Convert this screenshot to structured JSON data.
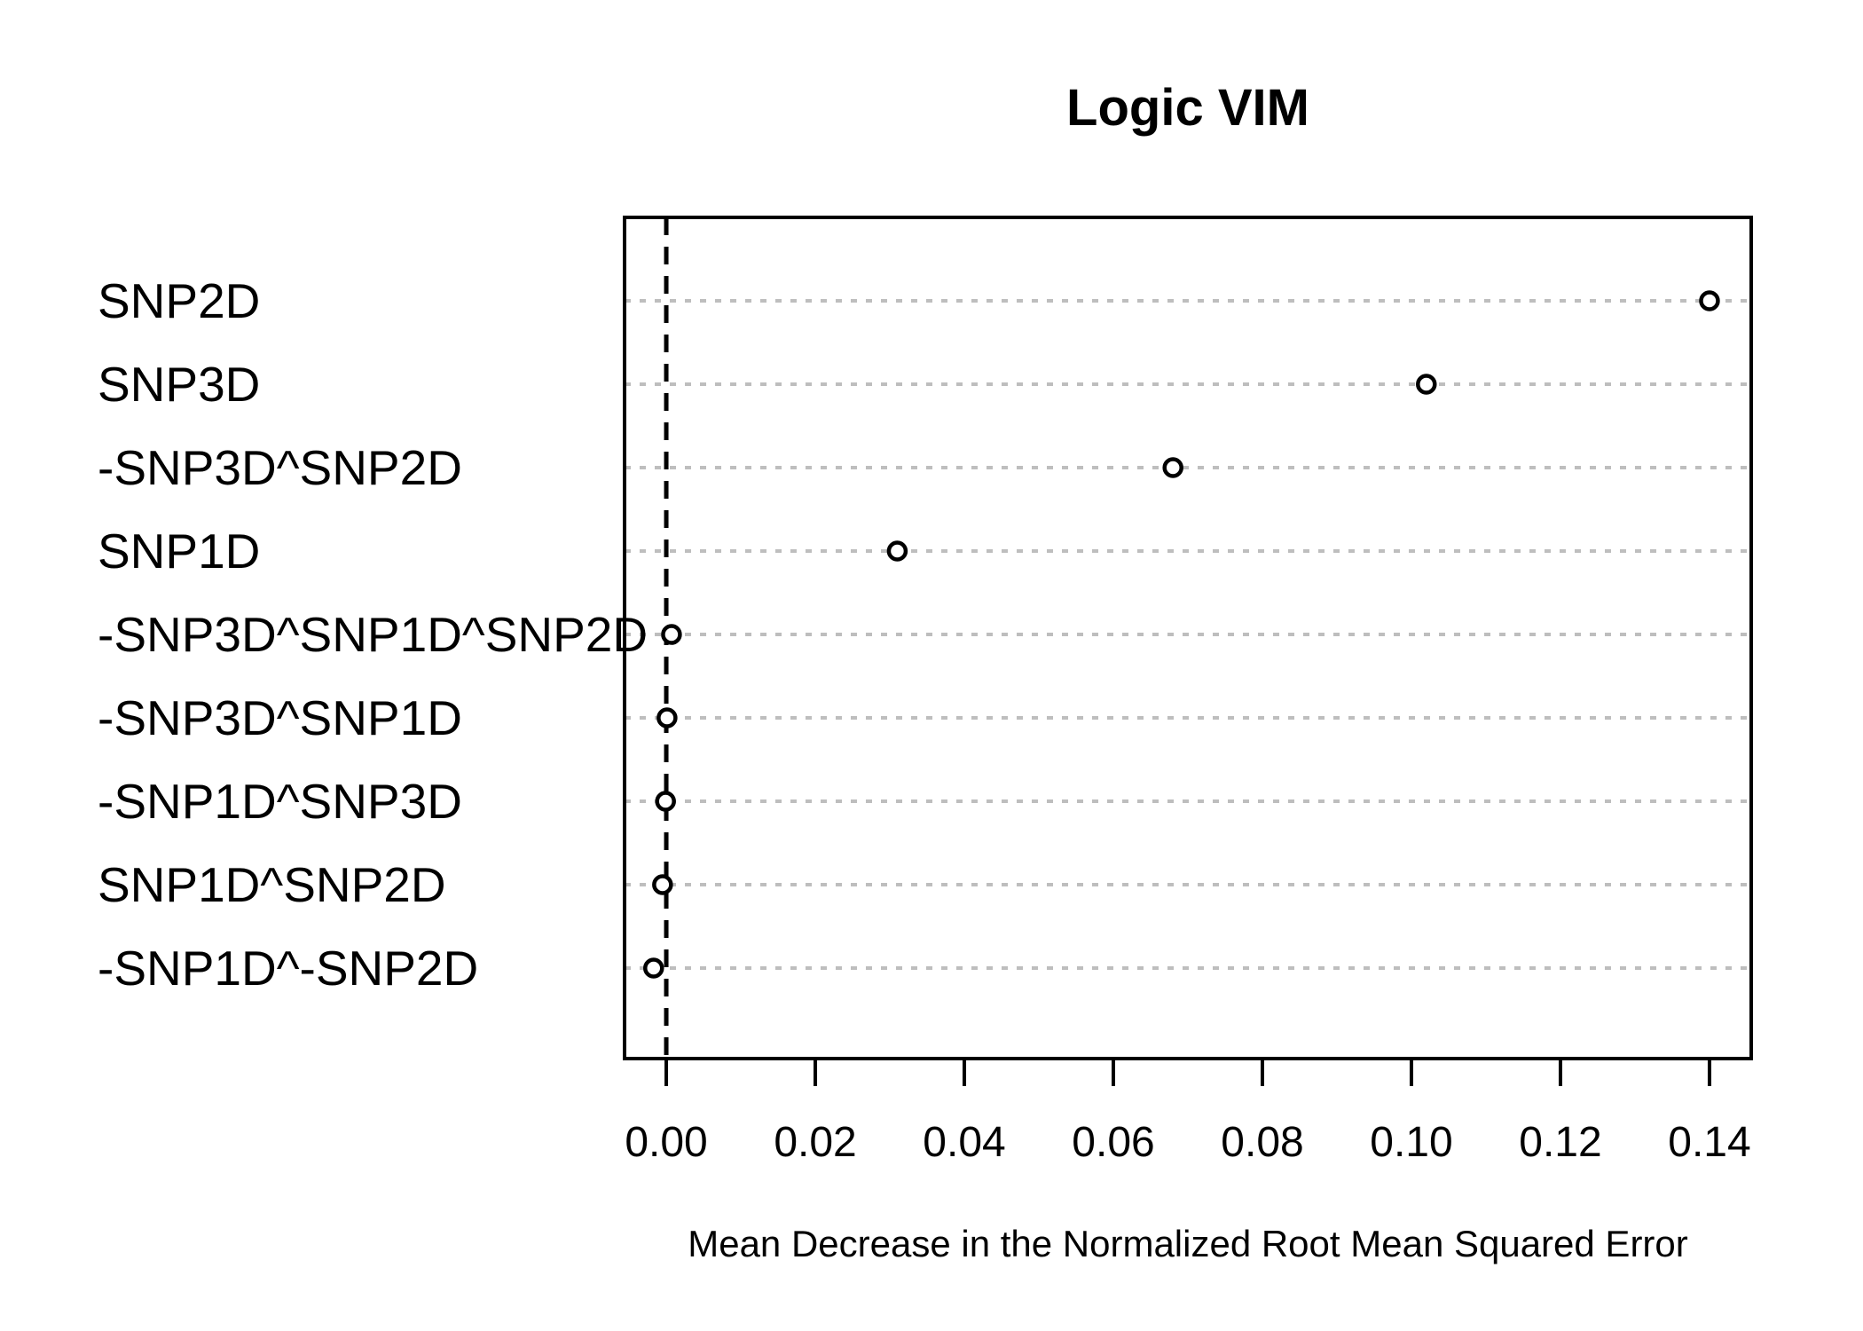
{
  "figure": {
    "title": "Logic VIM",
    "x_axis_label": "Mean Decrease in the Normalized Root Mean Squared Error"
  },
  "chart_data": {
    "type": "scatter",
    "subtype": "cleveland-dotchart",
    "title": "Logic VIM",
    "xlabel": "Mean Decrease in the Normalized Root Mean Squared Error",
    "ylabel": "",
    "categories": [
      "SNP2D",
      "SNP3D",
      "-SNP3D^SNP2D",
      "SNP1D",
      "-SNP3D^SNP1D^SNP2D",
      "-SNP3D^SNP1D",
      "-SNP1D^SNP3D",
      "SNP1D^SNP2D",
      "-SNP1D^-SNP2D"
    ],
    "values": [
      0.14,
      0.102,
      0.068,
      0.031,
      0.0007,
      0.0001,
      -0.0001,
      -0.0005,
      -0.0017
    ],
    "xlim": [
      -0.0056,
      0.1456
    ],
    "x_ticks": {
      "values": [
        0.0,
        0.02,
        0.04,
        0.06,
        0.08,
        0.1,
        0.12,
        0.14
      ],
      "labels": [
        "0.00",
        "0.02",
        "0.04",
        "0.06",
        "0.08",
        "0.10",
        "0.12",
        "0.14"
      ]
    },
    "reference_line_x": 0,
    "grid": "dotted-horizontal",
    "legend": "none",
    "marker": "open-circle",
    "colors": {
      "marker": "#000000",
      "grid": "#bebebe",
      "axis": "#000000",
      "reference_line": "#000000",
      "background": "#ffffff",
      "text": "#000000"
    }
  }
}
